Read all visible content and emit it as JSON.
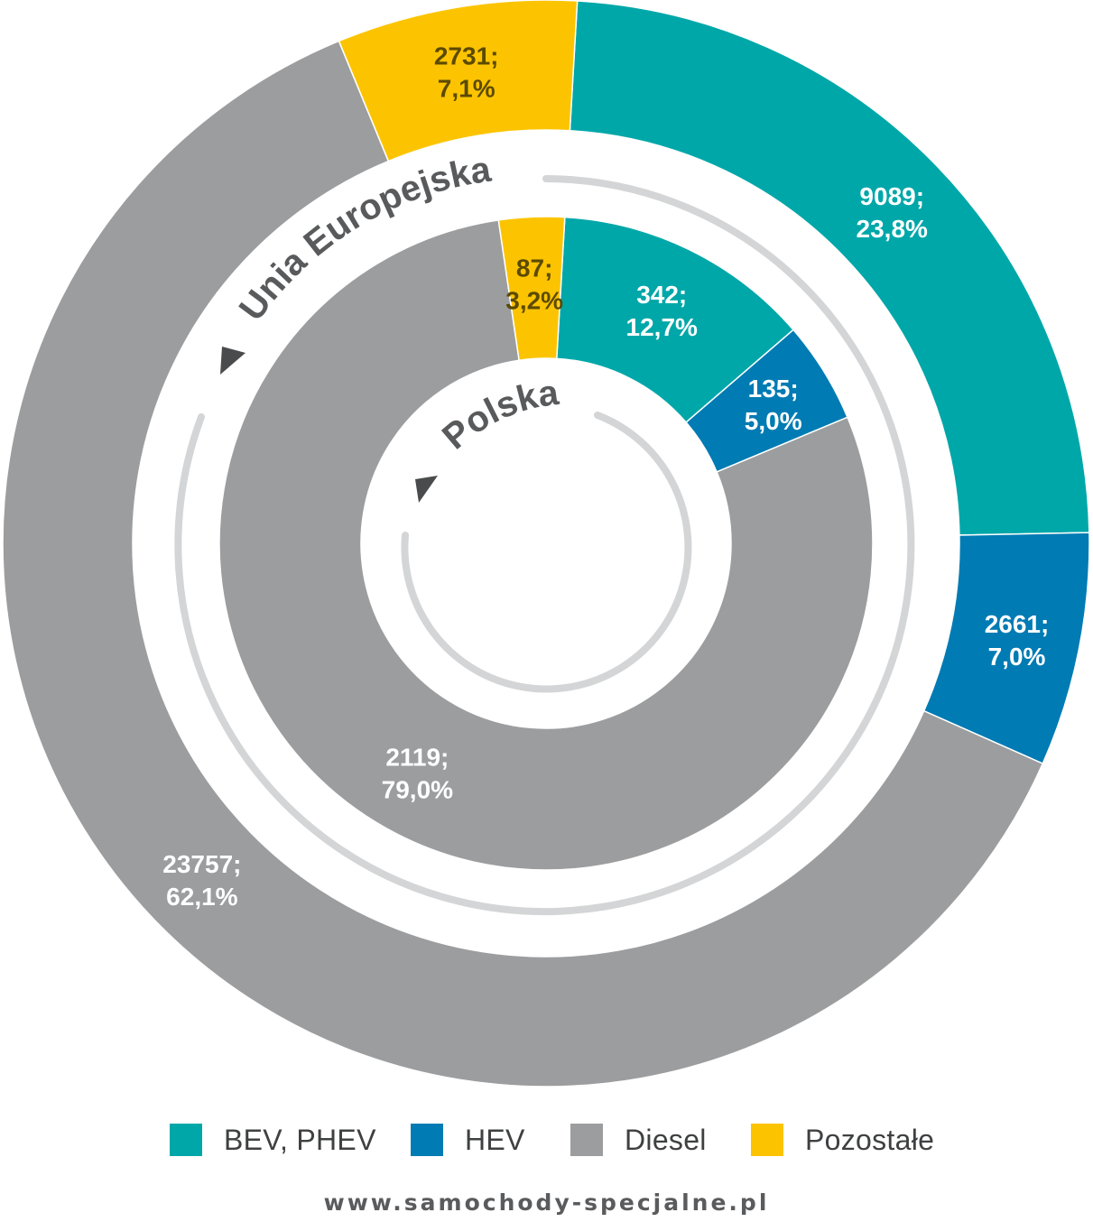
{
  "chart_data": {
    "type": "pie",
    "categories": [
      "BEV, PHEV",
      "HEV",
      "Diesel",
      "Pozostałe"
    ],
    "colors": {
      "BEV, PHEV": "#00a7a9",
      "HEV": "#007bb3",
      "Diesel": "#9c9d9f",
      "Pozostałe": "#fcc400"
    },
    "rings": [
      {
        "name": "Unia Europejska",
        "values": [
          9089,
          2661,
          23757,
          2731
        ],
        "labels": [
          {
            "value": "9089;",
            "percent": "23,8%"
          },
          {
            "value": "2661;",
            "percent": "7,0%"
          },
          {
            "value": "23757;",
            "percent": "62,1%"
          },
          {
            "value": "2731;",
            "percent": "7,1%"
          }
        ]
      },
      {
        "name": "Polska",
        "values": [
          342,
          135,
          2119,
          87
        ],
        "labels": [
          {
            "value": "342;",
            "percent": "12,7%"
          },
          {
            "value": "135;",
            "percent": "5,0%"
          },
          {
            "value": "2119;",
            "percent": "79,0%"
          },
          {
            "value": "87;",
            "percent": "3,2%"
          }
        ]
      }
    ],
    "legend_position": "bottom"
  },
  "legend": {
    "items": [
      {
        "label": "BEV, PHEV",
        "color": "#00a7a9"
      },
      {
        "label": "HEV",
        "color": "#007bb3"
      },
      {
        "label": "Diesel",
        "color": "#9c9d9f"
      },
      {
        "label": "Pozostałe",
        "color": "#fcc400"
      }
    ]
  },
  "footer": {
    "url": "www.samochody-specjalne.pl"
  }
}
